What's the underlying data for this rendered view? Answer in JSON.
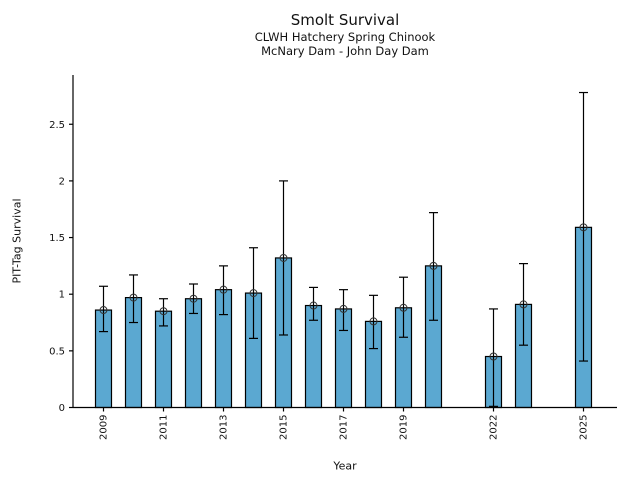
{
  "header": {
    "title": "Smolt Survival",
    "subtitle1": "CLWH Hatchery Spring Chinook",
    "subtitle2": "McNary Dam - John Day Dam"
  },
  "chart_data": {
    "type": "bar",
    "title": "Smolt Survival",
    "subtitle1": "CLWH Hatchery Spring Chinook",
    "subtitle2": "McNary Dam - John Day Dam",
    "xlabel": "Year",
    "ylabel": "PIT-Tag Survival",
    "xlim": [
      2008,
      2026
    ],
    "ylim": [
      0,
      2.93
    ],
    "grid": false,
    "legend": null,
    "bar_color": "#5BA8D1",
    "bar_edge_color": "#000000",
    "errorbar_color": "#000000",
    "ytick_values": [
      0,
      0.5,
      1,
      1.5,
      2,
      2.5
    ],
    "ytick_labels": [
      "0",
      "0.5",
      "1",
      "1.5",
      "2",
      "2.5"
    ],
    "xtick_values": [
      2009,
      2011,
      2013,
      2015,
      2017,
      2019,
      2022,
      2025
    ],
    "xtick_labels": [
      "2009",
      "2011",
      "2013",
      "2015",
      "2017",
      "2019",
      "2022",
      "2025"
    ],
    "series": [
      {
        "name": "PIT-Tag Survival",
        "x": [
          2009,
          2010,
          2011,
          2012,
          2013,
          2014,
          2015,
          2016,
          2017,
          2018,
          2019,
          2020,
          2022,
          2023,
          2025
        ],
        "values": [
          0.86,
          0.97,
          0.85,
          0.96,
          1.04,
          1.01,
          1.32,
          0.9,
          0.87,
          0.76,
          0.88,
          1.25,
          0.45,
          0.91,
          1.59
        ],
        "ci_upper": [
          1.07,
          1.17,
          0.96,
          1.09,
          1.25,
          1.41,
          2.0,
          1.06,
          1.04,
          0.99,
          1.15,
          1.72,
          0.87,
          1.27,
          2.78
        ],
        "ci_lower": [
          0.67,
          0.75,
          0.72,
          0.83,
          0.82,
          0.61,
          0.64,
          0.77,
          0.68,
          0.52,
          0.62,
          0.77,
          0.01,
          0.55,
          0.41
        ]
      }
    ],
    "missing_years": [
      2021,
      2024
    ]
  }
}
